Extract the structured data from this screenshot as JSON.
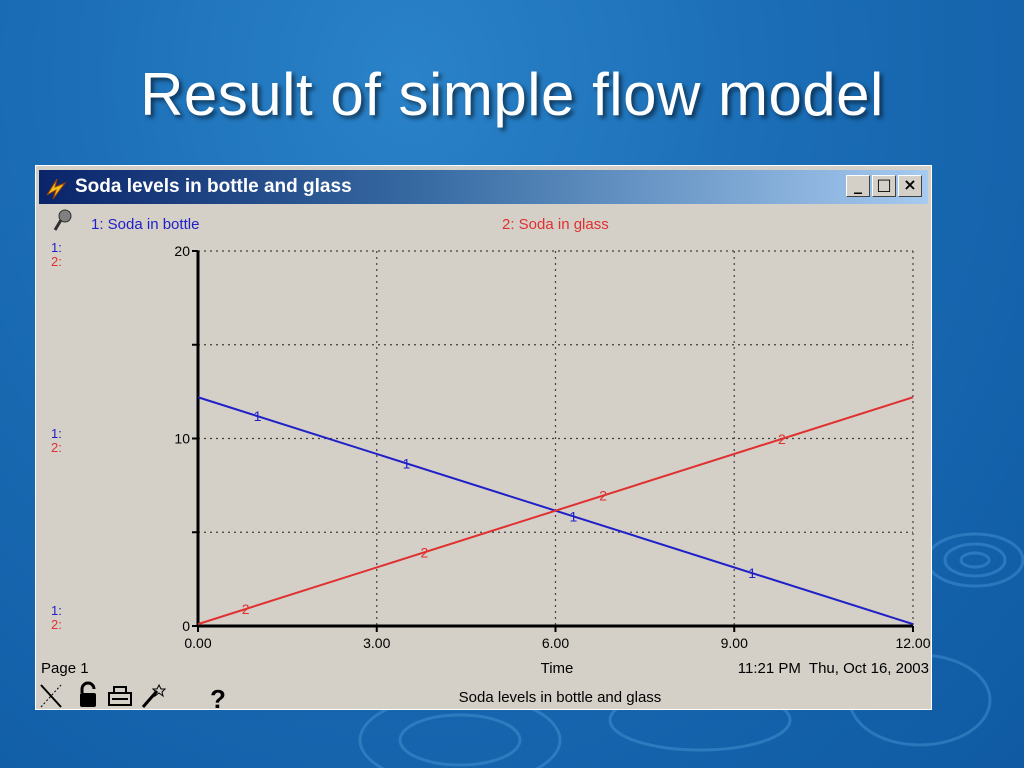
{
  "slide": {
    "title": "Result of simple flow model"
  },
  "window": {
    "title": "Soda levels in bottle and glass",
    "buttons": {
      "minimize": "_",
      "maximize": "□",
      "close": "×"
    }
  },
  "legend": {
    "series1": "1: Soda in bottle",
    "series2": "2: Soda in glass"
  },
  "scale_markers": [
    "1:",
    "2:"
  ],
  "footer": {
    "page": "Page 1",
    "xlabel": "Time",
    "timestamp": "11:21 PM  Thu, Oct 16, 2003",
    "caption": "Soda levels in bottle and glass",
    "help": "?"
  },
  "colors": {
    "series1": "#2020c8",
    "series2": "#e03030",
    "background": "#1a6cb4"
  },
  "chart_data": {
    "type": "line",
    "title": "Soda levels in bottle and glass",
    "xlabel": "Time",
    "ylabel": "",
    "xlim": [
      0,
      12
    ],
    "ylim": [
      0,
      20
    ],
    "x_ticks": [
      "0.00",
      "3.00",
      "6.00",
      "9.00",
      "12.00"
    ],
    "y_ticks": [
      "0",
      "10",
      "20"
    ],
    "grid": true,
    "series": [
      {
        "name": "Soda in bottle",
        "marker": "1",
        "color": "#2020c8",
        "x": [
          0,
          12
        ],
        "y": [
          12.2,
          0.1
        ],
        "marker_x": [
          1,
          3.5,
          6.3,
          9.3
        ]
      },
      {
        "name": "Soda in glass",
        "marker": "2",
        "color": "#e03030",
        "x": [
          0,
          12
        ],
        "y": [
          0.1,
          12.2
        ],
        "marker_x": [
          0.8,
          3.8,
          6.8,
          9.8
        ]
      }
    ]
  }
}
